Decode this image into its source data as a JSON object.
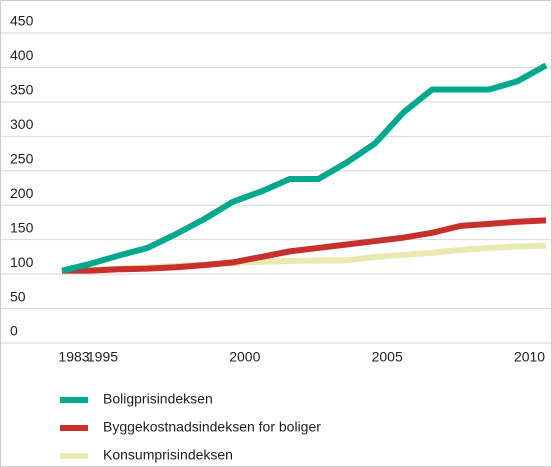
{
  "chart_data": {
    "type": "line",
    "categories": [
      "1983",
      "1995",
      null,
      null,
      null,
      null,
      "2000",
      null,
      null,
      null,
      null,
      "2005",
      null,
      null,
      null,
      null,
      "2010",
      null
    ],
    "series": [
      {
        "name": "Boligprisindeksen",
        "color": "#00a88e",
        "values": [
          105,
          115,
          127,
          138,
          158,
          180,
          205,
          220,
          238,
          238,
          262,
          290,
          335,
          368,
          368,
          368,
          380,
          403
        ]
      },
      {
        "name": "Byggekostnadsindeksen for boliger",
        "color": "#c8302e",
        "values": [
          105,
          105,
          107,
          108,
          110,
          113,
          117,
          125,
          133,
          138,
          143,
          148,
          153,
          160,
          170,
          173,
          176,
          178
        ]
      },
      {
        "name": "Konsumprisindeksen",
        "color": "#e9eab0",
        "values": [
          105,
          106,
          108,
          110,
          112,
          114,
          116,
          118,
          119,
          120,
          120,
          125,
          128,
          131,
          135,
          138,
          140,
          141
        ]
      }
    ],
    "ylim": [
      0,
      450
    ],
    "yticks": [
      0,
      50,
      100,
      150,
      200,
      250,
      300,
      350,
      400,
      450
    ],
    "grid": true
  }
}
